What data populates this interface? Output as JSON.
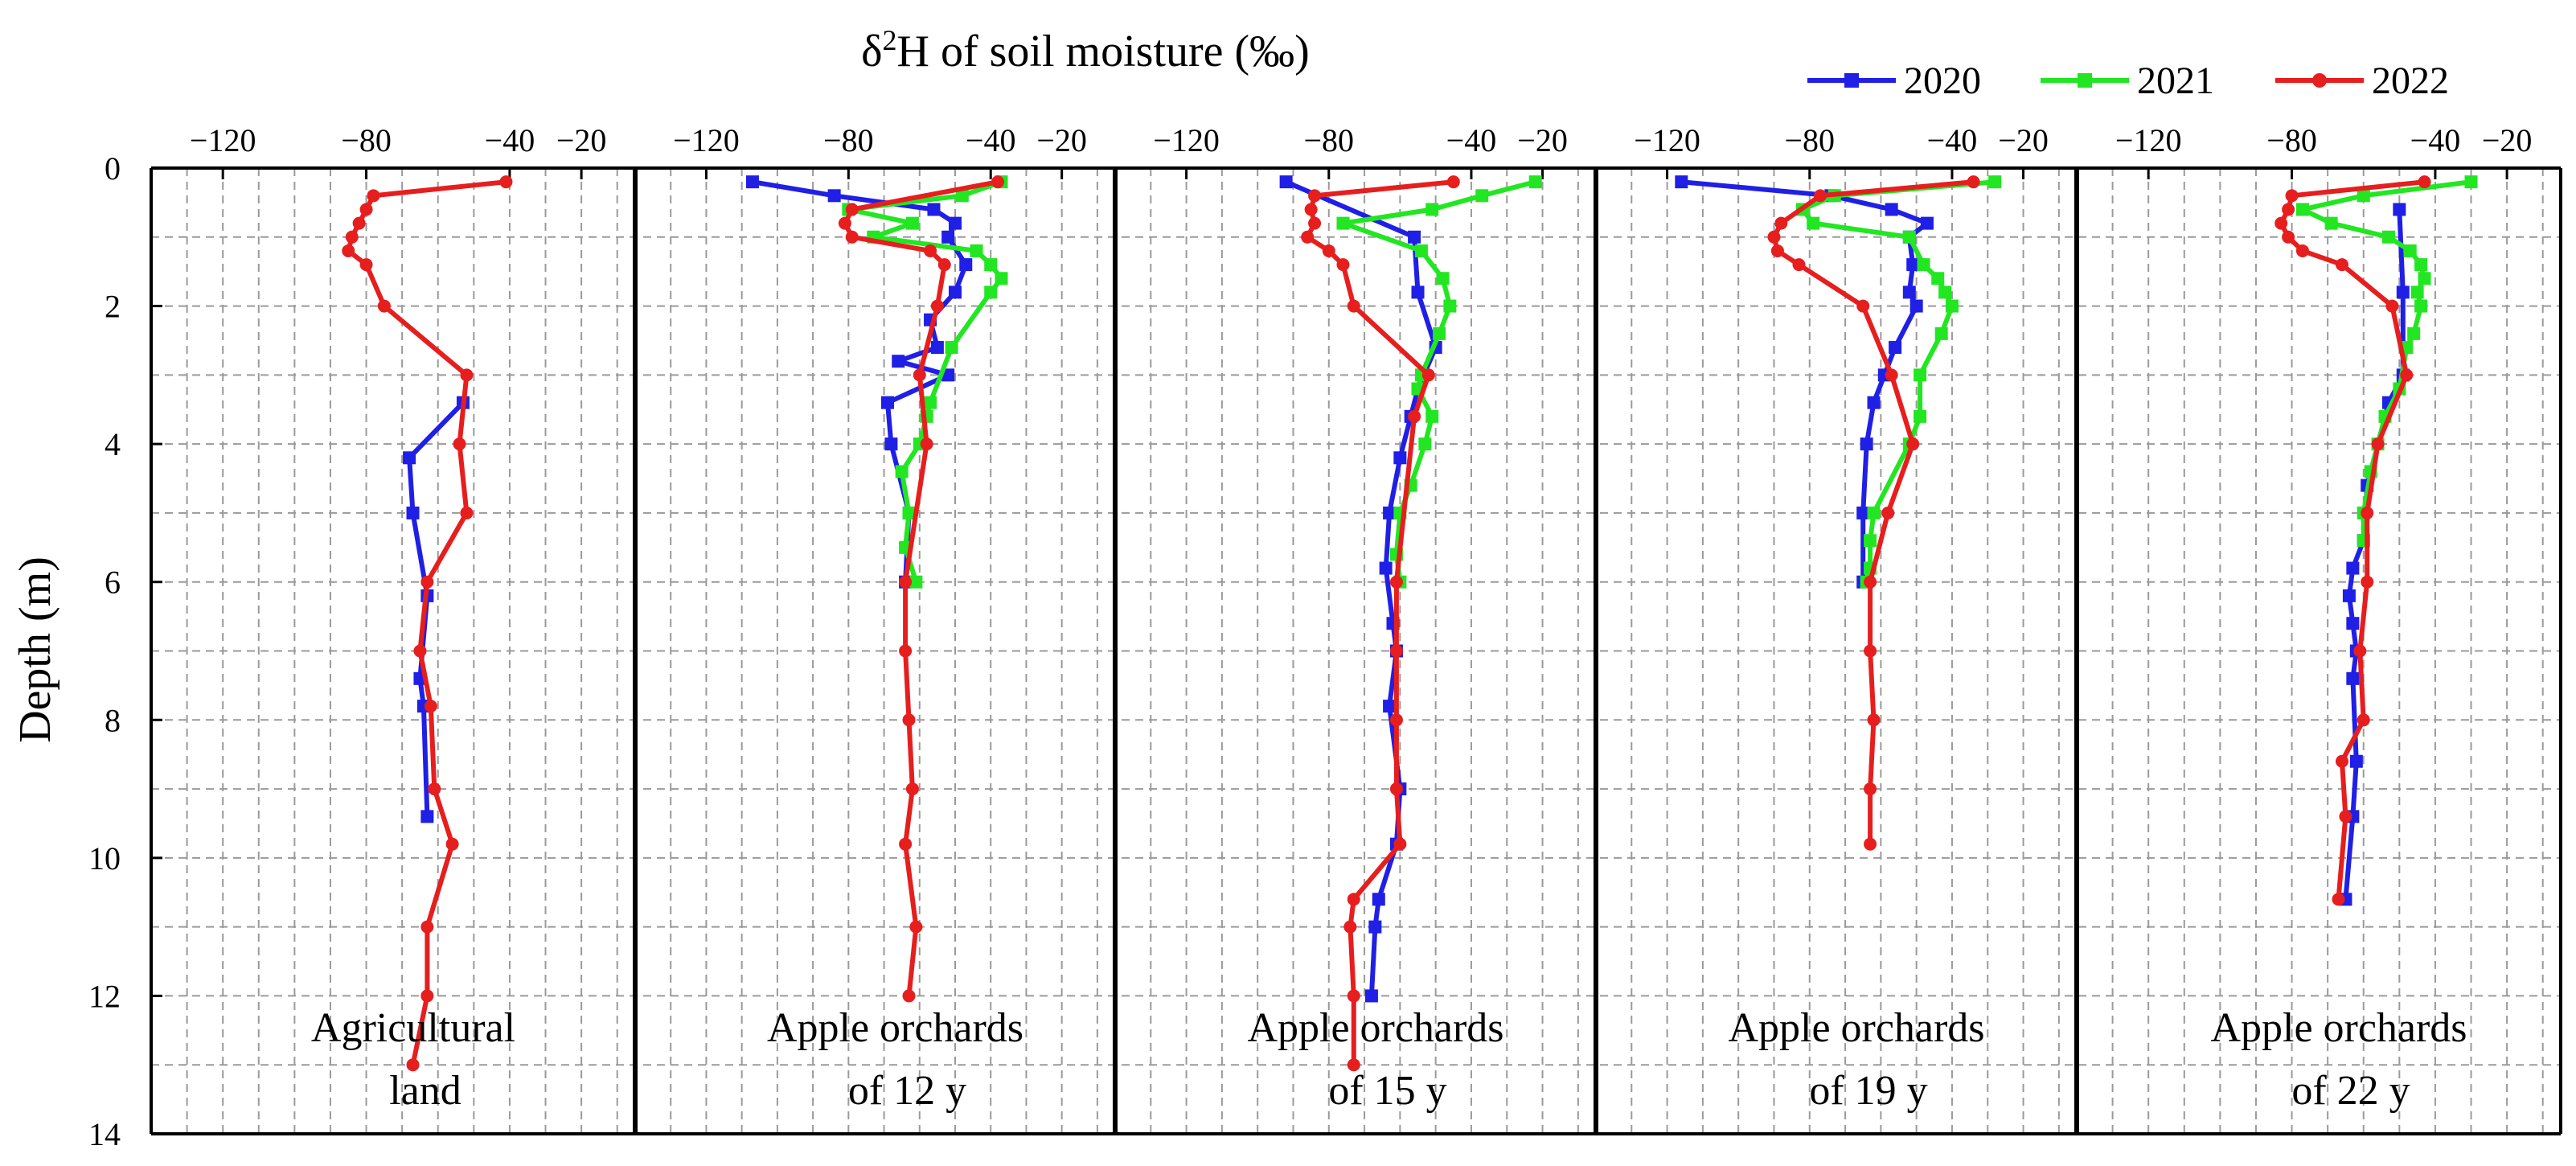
{
  "chart_data": {
    "type": "line",
    "title": "δ²H of soil moisture (‰)",
    "title_parts": {
      "delta": "δ",
      "superscript": "2",
      "rest": "H of soil moisture (‰)"
    },
    "ylabel": "Depth (m)",
    "x_axis_position": "top",
    "y_inverted": true,
    "xlim": [
      -140,
      -5
    ],
    "ylim": [
      0,
      14
    ],
    "x_ticks": [
      -120,
      -80,
      -40,
      -20
    ],
    "x_tick_labels": [
      "−120",
      "−80",
      "−40",
      "−20"
    ],
    "y_ticks": [
      0,
      2,
      4,
      6,
      8,
      10,
      12,
      14
    ],
    "y_tick_labels": [
      "0",
      "2",
      "4",
      "6",
      "8",
      "10",
      "12",
      "14"
    ],
    "grid": "dashed",
    "legend": {
      "position": "top-right",
      "entries": [
        "2020",
        "2021",
        "2022"
      ]
    },
    "colors": {
      "2020": "#1f1fe6",
      "2021": "#22e622",
      "2022": "#e61e1e"
    },
    "panels": [
      {
        "label_lines": [
          "Agricultural",
          "land"
        ],
        "series": [
          {
            "name": "2020",
            "points": [
              [
                -53,
                3.4
              ],
              [
                -68,
                4.2
              ],
              [
                -67,
                5.0
              ],
              [
                -63,
                6.2
              ],
              [
                -65,
                7.4
              ],
              [
                -64,
                7.8
              ],
              [
                -63,
                9.4
              ]
            ]
          },
          {
            "name": "2022",
            "points": [
              [
                -41,
                0.2
              ],
              [
                -78,
                0.4
              ],
              [
                -80,
                0.6
              ],
              [
                -82,
                0.8
              ],
              [
                -84,
                1.0
              ],
              [
                -85,
                1.2
              ],
              [
                -80,
                1.4
              ],
              [
                -75,
                2.0
              ],
              [
                -52,
                3.0
              ],
              [
                -54,
                4.0
              ],
              [
                -52,
                5.0
              ],
              [
                -63,
                6.0
              ],
              [
                -65,
                7.0
              ],
              [
                -62,
                7.8
              ],
              [
                -61,
                9.0
              ],
              [
                -56,
                9.8
              ],
              [
                -63,
                11.0
              ],
              [
                -63,
                12.0
              ],
              [
                -67,
                13.0
              ]
            ]
          }
        ]
      },
      {
        "label_lines": [
          "Apple orchards",
          "of 12 y"
        ],
        "series": [
          {
            "name": "2020",
            "points": [
              [
                -107,
                0.2
              ],
              [
                -84,
                0.4
              ],
              [
                -56,
                0.6
              ],
              [
                -50,
                0.8
              ],
              [
                -52,
                1.0
              ],
              [
                -47,
                1.4
              ],
              [
                -50,
                1.8
              ],
              [
                -57,
                2.2
              ],
              [
                -55,
                2.6
              ],
              [
                -66,
                2.8
              ],
              [
                -52,
                3.0
              ],
              [
                -69,
                3.4
              ],
              [
                -68,
                4.0
              ],
              [
                -63,
                5.0
              ],
              [
                -64,
                6.0
              ]
            ]
          },
          {
            "name": "2021",
            "points": [
              [
                -37,
                0.2
              ],
              [
                -48,
                0.4
              ],
              [
                -80,
                0.6
              ],
              [
                -62,
                0.8
              ],
              [
                -73,
                1.0
              ],
              [
                -44,
                1.2
              ],
              [
                -40,
                1.4
              ],
              [
                -37,
                1.6
              ],
              [
                -40,
                1.8
              ],
              [
                -51,
                2.6
              ],
              [
                -57,
                3.4
              ],
              [
                -58,
                3.6
              ],
              [
                -60,
                4.0
              ],
              [
                -65,
                4.4
              ],
              [
                -63,
                5.0
              ],
              [
                -64,
                5.5
              ],
              [
                -61,
                6.0
              ]
            ]
          },
          {
            "name": "2022",
            "points": [
              [
                -38,
                0.2
              ],
              [
                -79,
                0.6
              ],
              [
                -81,
                0.8
              ],
              [
                -79,
                1.0
              ],
              [
                -57,
                1.2
              ],
              [
                -53,
                1.4
              ],
              [
                -55,
                2.0
              ],
              [
                -60,
                3.0
              ],
              [
                -58,
                4.0
              ],
              [
                -64,
                6.0
              ],
              [
                -64,
                7.0
              ],
              [
                -63,
                8.0
              ],
              [
                -62,
                9.0
              ],
              [
                -64,
                9.8
              ],
              [
                -61,
                11.0
              ],
              [
                -63,
                12.0
              ]
            ]
          }
        ]
      },
      {
        "label_lines": [
          "Apple orchards",
          "of 15 y"
        ],
        "series": [
          {
            "name": "2020",
            "points": [
              [
                -92,
                0.2
              ],
              [
                -56,
                1.0
              ],
              [
                -55,
                1.8
              ],
              [
                -50,
                2.6
              ],
              [
                -55,
                3.2
              ],
              [
                -57,
                3.6
              ],
              [
                -60,
                4.2
              ],
              [
                -63,
                5.0
              ],
              [
                -64,
                5.8
              ],
              [
                -62,
                6.6
              ],
              [
                -61,
                7.0
              ],
              [
                -63,
                7.8
              ],
              [
                -60,
                9.0
              ],
              [
                -61,
                9.8
              ],
              [
                -66,
                10.6
              ],
              [
                -67,
                11.0
              ],
              [
                -68,
                12.0
              ]
            ]
          },
          {
            "name": "2021",
            "points": [
              [
                -22,
                0.2
              ],
              [
                -37,
                0.4
              ],
              [
                -51,
                0.6
              ],
              [
                -76,
                0.8
              ],
              [
                -54,
                1.2
              ],
              [
                -48,
                1.6
              ],
              [
                -46,
                2.0
              ],
              [
                -49,
                2.4
              ],
              [
                -54,
                3.0
              ],
              [
                -55,
                3.2
              ],
              [
                -51,
                3.6
              ],
              [
                -53,
                4.0
              ],
              [
                -57,
                4.6
              ],
              [
                -60,
                5.0
              ],
              [
                -61,
                5.6
              ],
              [
                -60,
                6.0
              ]
            ]
          },
          {
            "name": "2022",
            "points": [
              [
                -45,
                0.2
              ],
              [
                -84,
                0.4
              ],
              [
                -85,
                0.6
              ],
              [
                -84,
                0.8
              ],
              [
                -86,
                1.0
              ],
              [
                -80,
                1.2
              ],
              [
                -76,
                1.4
              ],
              [
                -73,
                2.0
              ],
              [
                -52,
                3.0
              ],
              [
                -56,
                3.6
              ],
              [
                -61,
                6.0
              ],
              [
                -61,
                7.0
              ],
              [
                -61,
                8.0
              ],
              [
                -61,
                9.0
              ],
              [
                -60,
                9.8
              ],
              [
                -73,
                10.6
              ],
              [
                -74,
                11.0
              ],
              [
                -73,
                12.0
              ],
              [
                -73,
                13.0
              ]
            ]
          }
        ]
      },
      {
        "label_lines": [
          "Apple orchards",
          "of 19 y"
        ],
        "series": [
          {
            "name": "2020",
            "points": [
              [
                -116,
                0.2
              ],
              [
                -74,
                0.4
              ],
              [
                -57,
                0.6
              ],
              [
                -47,
                0.8
              ],
              [
                -52,
                1.0
              ],
              [
                -51,
                1.4
              ],
              [
                -52,
                1.8
              ],
              [
                -50,
                2.0
              ],
              [
                -56,
                2.6
              ],
              [
                -59,
                3.0
              ],
              [
                -62,
                3.4
              ],
              [
                -64,
                4.0
              ],
              [
                -65,
                5.0
              ],
              [
                -65,
                6.0
              ]
            ]
          },
          {
            "name": "2021",
            "points": [
              [
                -28,
                0.2
              ],
              [
                -73,
                0.4
              ],
              [
                -82,
                0.6
              ],
              [
                -79,
                0.8
              ],
              [
                -52,
                1.0
              ],
              [
                -48,
                1.4
              ],
              [
                -44,
                1.6
              ],
              [
                -42,
                1.8
              ],
              [
                -40,
                2.0
              ],
              [
                -43,
                2.4
              ],
              [
                -49,
                3.0
              ],
              [
                -49,
                3.6
              ],
              [
                -52,
                4.0
              ],
              [
                -62,
                5.0
              ],
              [
                -63,
                5.4
              ],
              [
                -63,
                5.8
              ],
              [
                -64,
                6.0
              ]
            ]
          },
          {
            "name": "2022",
            "points": [
              [
                -34,
                0.2
              ],
              [
                -77,
                0.4
              ],
              [
                -88,
                0.8
              ],
              [
                -90,
                1.0
              ],
              [
                -89,
                1.2
              ],
              [
                -83,
                1.4
              ],
              [
                -65,
                2.0
              ],
              [
                -57,
                3.0
              ],
              [
                -51,
                4.0
              ],
              [
                -58,
                5.0
              ],
              [
                -63,
                6.0
              ],
              [
                -63,
                7.0
              ],
              [
                -62,
                8.0
              ],
              [
                -63,
                9.0
              ],
              [
                -63,
                9.8
              ]
            ]
          }
        ]
      },
      {
        "label_lines": [
          "Apple orchards",
          "of 22 y"
        ],
        "series": [
          {
            "name": "2020",
            "points": [
              [
                -50,
                0.6
              ],
              [
                -49,
                1.8
              ],
              [
                -49,
                3.0
              ],
              [
                -53,
                3.4
              ],
              [
                -59,
                4.6
              ],
              [
                -60,
                5.4
              ],
              [
                -63,
                5.8
              ],
              [
                -64,
                6.2
              ],
              [
                -63,
                6.6
              ],
              [
                -62,
                7.0
              ],
              [
                -63,
                7.4
              ],
              [
                -62,
                8.6
              ],
              [
                -63,
                9.4
              ],
              [
                -65,
                10.6
              ]
            ]
          },
          {
            "name": "2021",
            "points": [
              [
                -30,
                0.2
              ],
              [
                -60,
                0.4
              ],
              [
                -77,
                0.6
              ],
              [
                -69,
                0.8
              ],
              [
                -53,
                1.0
              ],
              [
                -47,
                1.2
              ],
              [
                -44,
                1.4
              ],
              [
                -43,
                1.6
              ],
              [
                -45,
                1.8
              ],
              [
                -44,
                2.0
              ],
              [
                -46,
                2.4
              ],
              [
                -48,
                2.6
              ],
              [
                -50,
                3.2
              ],
              [
                -54,
                3.6
              ],
              [
                -56,
                4.0
              ],
              [
                -58,
                4.4
              ],
              [
                -60,
                5.0
              ],
              [
                -60,
                5.4
              ]
            ]
          },
          {
            "name": "2022",
            "points": [
              [
                -43,
                0.2
              ],
              [
                -80,
                0.4
              ],
              [
                -81,
                0.6
              ],
              [
                -83,
                0.8
              ],
              [
                -81,
                1.0
              ],
              [
                -77,
                1.2
              ],
              [
                -66,
                1.4
              ],
              [
                -52,
                2.0
              ],
              [
                -48,
                3.0
              ],
              [
                -56,
                4.0
              ],
              [
                -59,
                5.0
              ],
              [
                -59,
                6.0
              ],
              [
                -61,
                7.0
              ],
              [
                -60,
                8.0
              ],
              [
                -66,
                8.6
              ],
              [
                -65,
                9.4
              ],
              [
                -67,
                10.6
              ]
            ]
          }
        ]
      }
    ]
  }
}
